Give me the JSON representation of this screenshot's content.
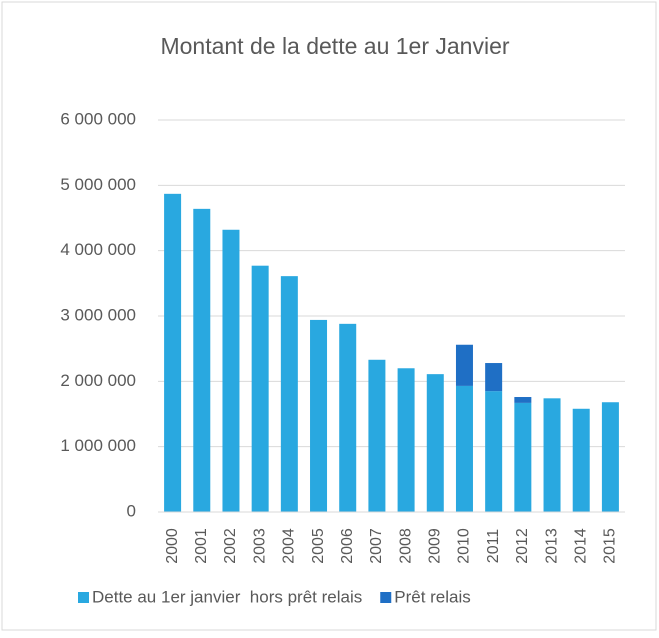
{
  "chart_data": {
    "type": "stacked_bar",
    "title": "Montant de la dette au 1er Janvier",
    "categories": [
      "2000",
      "2001",
      "2002",
      "2003",
      "2004",
      "2005",
      "2006",
      "2007",
      "2008",
      "2009",
      "2010",
      "2011",
      "2012",
      "2013",
      "2014",
      "2015"
    ],
    "series": [
      {
        "name": "Dette au 1er janvier  hors prêt relais",
        "color": "#29a8e0",
        "values": [
          4870000,
          4640000,
          4320000,
          3770000,
          3610000,
          2940000,
          2880000,
          2330000,
          2200000,
          2110000,
          1930000,
          1850000,
          1670000,
          1740000,
          1580000,
          1680000
        ]
      },
      {
        "name": "Prêt relais",
        "color": "#1f6fc5",
        "values": [
          null,
          null,
          null,
          null,
          null,
          null,
          null,
          null,
          null,
          null,
          630000,
          430000,
          90000,
          null,
          null,
          null
        ]
      }
    ],
    "ylim": [
      0,
      6000000
    ],
    "yticks": [
      0,
      {
        "value": 1000000,
        "label": "1 000 000"
      },
      {
        "value": 2000000,
        "label": "2 000 000"
      },
      {
        "value": 3000000,
        "label": "3 000 000"
      },
      {
        "value": 4000000,
        "label": "4 000 000"
      },
      {
        "value": 5000000,
        "label": "5 000 000"
      },
      {
        "value": 6000000,
        "label": "6 000 000"
      }
    ],
    "grid": true
  }
}
